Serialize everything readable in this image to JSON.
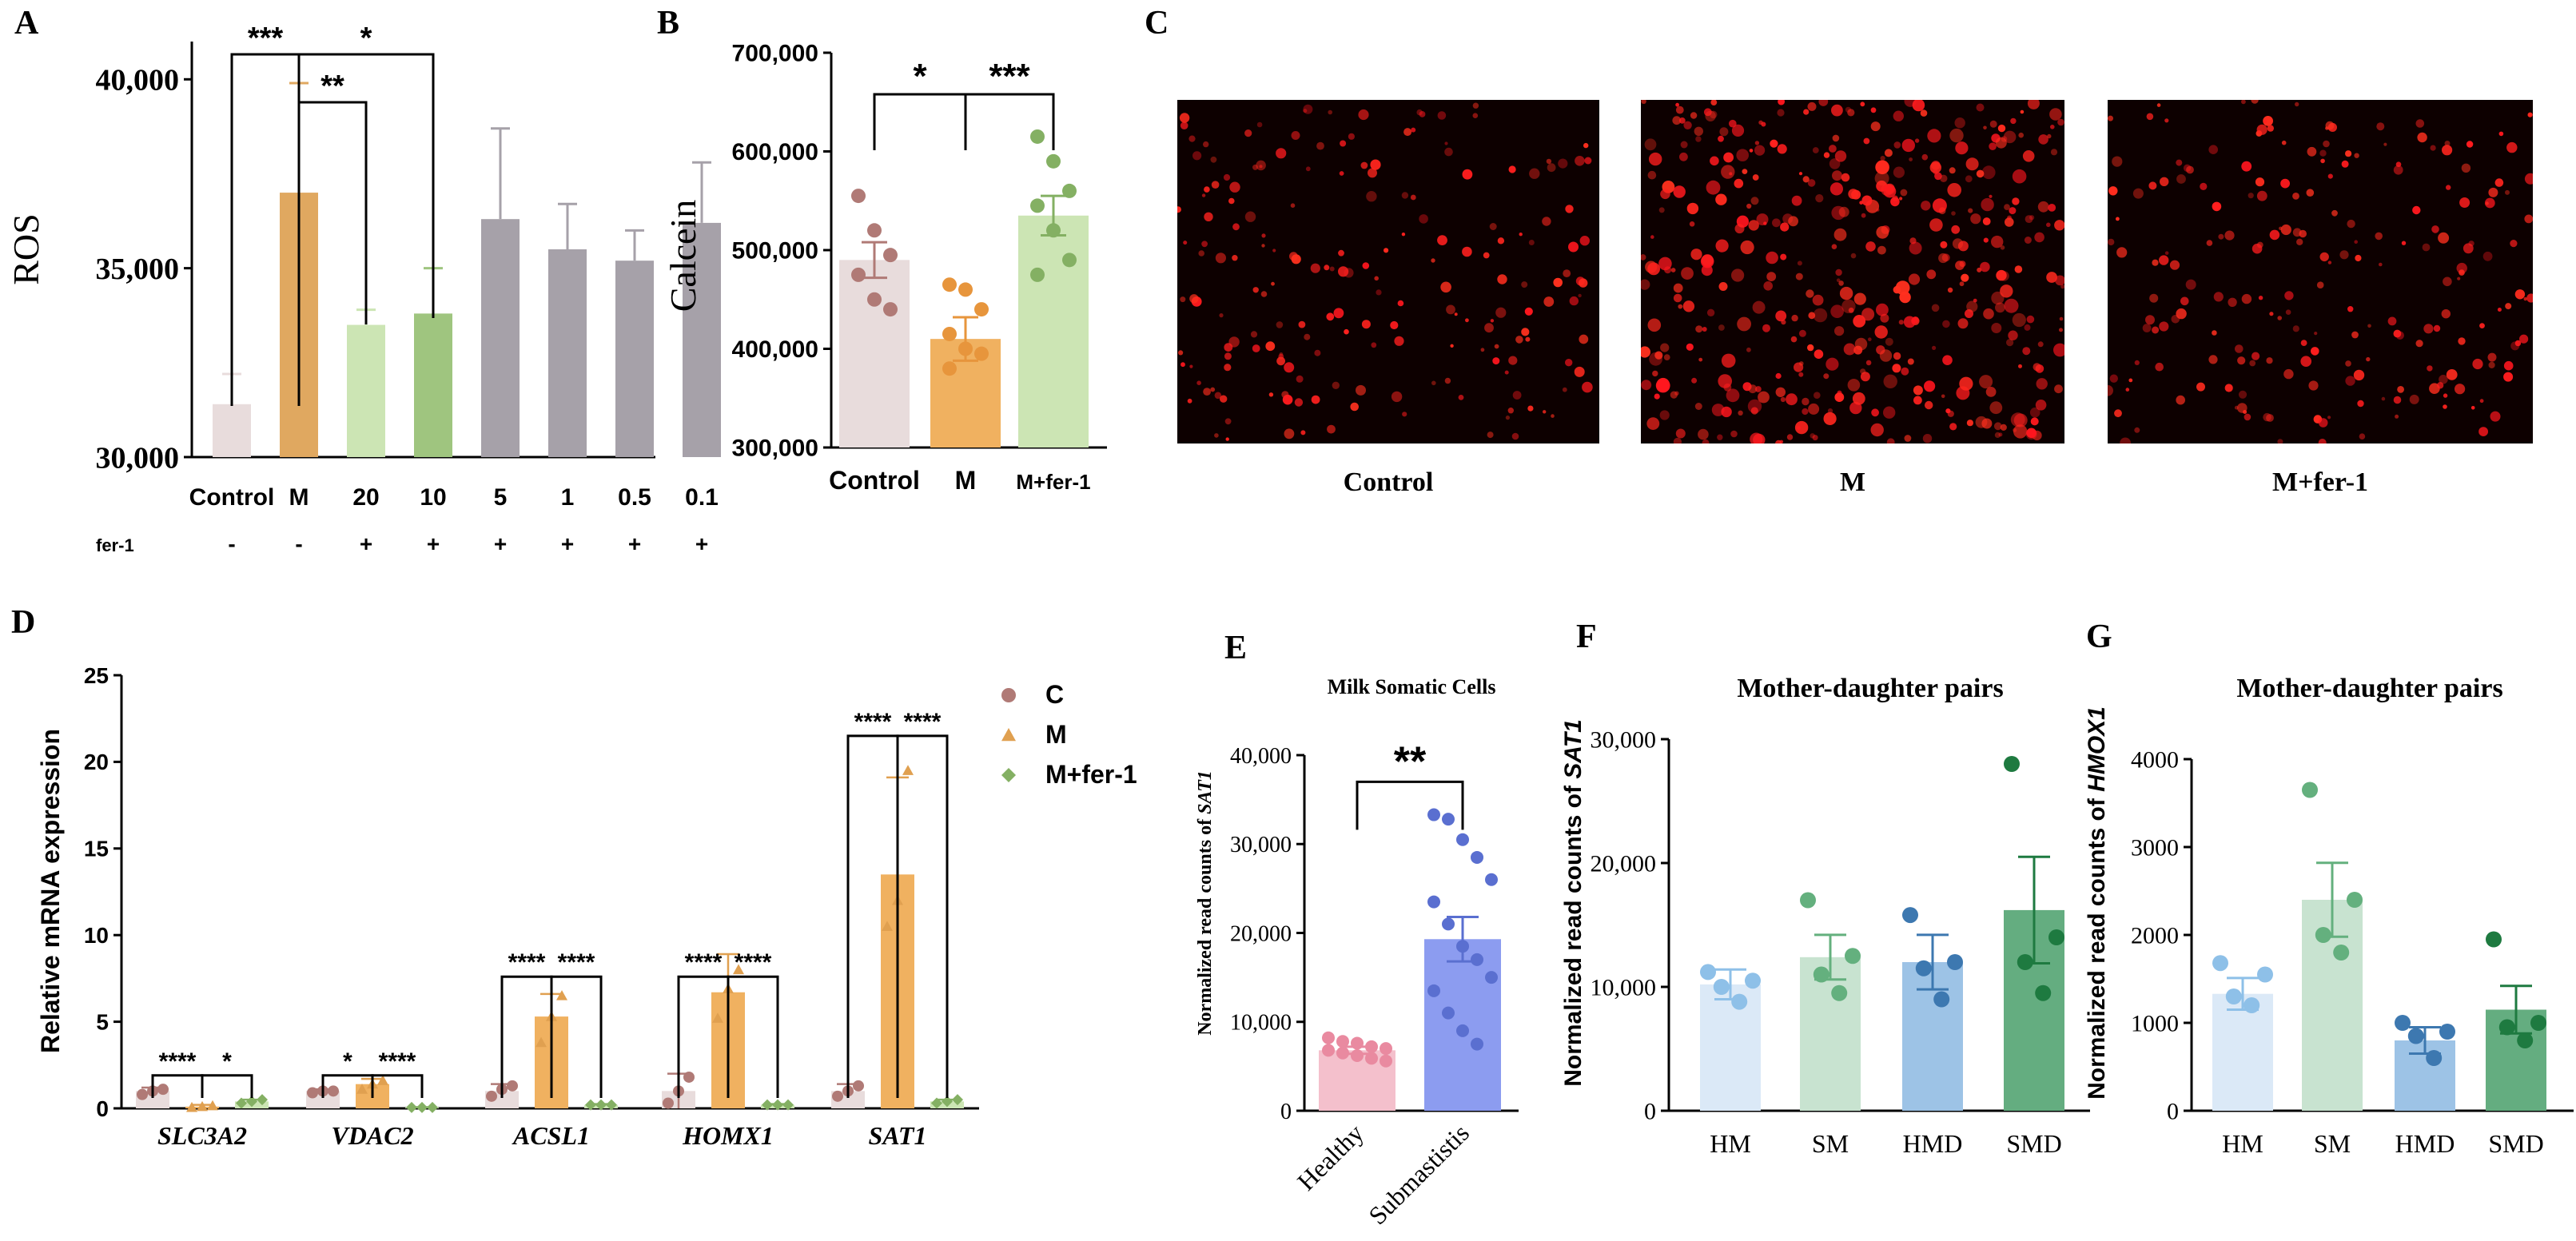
{
  "panels": {
    "A": {
      "letter": "A",
      "ylabel": "ROS",
      "ylim": [
        30000,
        41000
      ],
      "yticks": [
        "30,000",
        "35,000",
        "40,000"
      ],
      "ytick_values": [
        30000,
        35000,
        40000
      ],
      "categories": [
        "Control",
        "M",
        "20",
        "10",
        "5",
        "1",
        "0.5",
        "0.1"
      ],
      "fer_label": "fer-1",
      "fer_signs": [
        "-",
        "-",
        "+",
        "+",
        "+",
        "+",
        "+",
        "+"
      ],
      "values": [
        31400,
        37000,
        33500,
        33800,
        36300,
        35500,
        35200,
        36200
      ],
      "errors": [
        800,
        2900,
        400,
        1200,
        2400,
        1200,
        800,
        1600
      ],
      "colors": [
        "#e8dcdc",
        "#e0a860",
        "#cce5b4",
        "#9fc57f",
        "#a6a1a9",
        "#a6a1a9",
        "#a6a1a9",
        "#a6a1a9"
      ],
      "brackets": [
        {
          "from": 0,
          "to": 1,
          "label": "***"
        },
        {
          "from": 1,
          "to": 3,
          "label": "*"
        },
        {
          "from": 1,
          "to": 2,
          "label": "**"
        }
      ]
    },
    "B": {
      "letter": "B",
      "ylabel": "Calcein",
      "ylim": [
        300000,
        700000
      ],
      "yticks": [
        "300,000",
        "400,000",
        "500,000",
        "600,000",
        "700,000"
      ],
      "ytick_values": [
        300000,
        400000,
        500000,
        600000,
        700000
      ],
      "categories": [
        "Control",
        "M",
        "M+fer-1"
      ],
      "values": [
        490000,
        410000,
        535000
      ],
      "errors": [
        18000,
        22000,
        20000
      ],
      "colors": [
        "#e8dcdc",
        "#f0b160",
        "#cce5b4"
      ],
      "dot_colors": [
        "#b07a76",
        "#e7953c",
        "#84b063"
      ],
      "points": [
        [
          555000,
          520000,
          495000,
          475000,
          450000,
          440000
        ],
        [
          465000,
          460000,
          440000,
          415000,
          400000,
          395000,
          380000
        ],
        [
          615000,
          590000,
          560000,
          545000,
          520000,
          490000,
          475000
        ]
      ],
      "brackets": [
        {
          "from": 0,
          "to": 1,
          "label": "*"
        },
        {
          "from": 1,
          "to": 2,
          "label": "***"
        }
      ]
    },
    "C": {
      "letter": "C",
      "images": [
        {
          "label": "Control",
          "density": 0.45
        },
        {
          "label": "M",
          "density": 1.0
        },
        {
          "label": "M+fer-1",
          "density": 0.5
        }
      ]
    },
    "D": {
      "letter": "D",
      "ylabel": "Relative mRNA expression",
      "ylim": [
        0,
        25
      ],
      "yticks": [
        "0",
        "5",
        "10",
        "15",
        "20",
        "25"
      ],
      "ytick_values": [
        0,
        5,
        10,
        15,
        20,
        25
      ],
      "genes": [
        "SLC3A2",
        "VDAC2",
        "ACSL1",
        "HOMX1",
        "SAT1"
      ],
      "legend": [
        {
          "label": "C",
          "color": "#b07a76",
          "shape": "circle"
        },
        {
          "label": "M",
          "color": "#e0a050",
          "shape": "triangle"
        },
        {
          "label": "M+fer-1",
          "color": "#84b063",
          "shape": "diamond"
        }
      ],
      "series": [
        {
          "name": "C",
          "values": [
            1.0,
            1.0,
            1.0,
            1.0,
            1.0
          ],
          "errors": [
            0.2,
            0.1,
            0.4,
            1.0,
            0.4
          ],
          "points": [
            [
              0.8,
              1.0,
              1.1
            ],
            [
              0.9,
              1.0,
              1.0
            ],
            [
              0.7,
              1.1,
              1.3
            ],
            [
              0.3,
              1.0,
              1.8
            ],
            [
              0.7,
              1.0,
              1.3
            ]
          ]
        },
        {
          "name": "M",
          "values": [
            0.1,
            1.4,
            5.3,
            6.7,
            13.5
          ],
          "errors": [
            0.1,
            0.3,
            1.3,
            2.2,
            5.6
          ],
          "points": [
            [
              0.05,
              0.1,
              0.15
            ],
            [
              1.1,
              1.4,
              1.6
            ],
            [
              3.8,
              5.3,
              6.5
            ],
            [
              5.2,
              6.9,
              8.0
            ],
            [
              10.5,
              12.0,
              19.5
            ]
          ]
        },
        {
          "name": "M+fer-1",
          "values": [
            0.4,
            0.05,
            0.2,
            0.2,
            0.4
          ],
          "errors": [
            0.1,
            0.02,
            0.05,
            0.05,
            0.1
          ],
          "points": [
            [
              0.3,
              0.4,
              0.5
            ],
            [
              0.05,
              0.05,
              0.05
            ],
            [
              0.2,
              0.2,
              0.2
            ],
            [
              0.2,
              0.2,
              0.2
            ],
            [
              0.3,
              0.4,
              0.5
            ]
          ]
        }
      ],
      "brackets": [
        {
          "gene": 0,
          "labels": [
            "****",
            "*"
          ],
          "heights": [
            1.9,
            1.9
          ]
        },
        {
          "gene": 1,
          "labels": [
            "*",
            "****"
          ],
          "heights": [
            1.9,
            1.9
          ]
        },
        {
          "gene": 2,
          "labels": [
            "****",
            "****"
          ],
          "heights": [
            7.6,
            7.6
          ]
        },
        {
          "gene": 3,
          "labels": [
            "****",
            "****"
          ],
          "heights": [
            7.6,
            7.6
          ]
        },
        {
          "gene": 4,
          "labels": [
            "****",
            "****"
          ],
          "heights": [
            21.5,
            21.5
          ]
        }
      ]
    },
    "E": {
      "letter": "E",
      "title": "Milk Somatic Cells",
      "ylabel_pre": "Normalized read counts of ",
      "ylabel_gene": "SAT1",
      "ylim": [
        0,
        40000
      ],
      "yticks": [
        "0",
        "10,000",
        "20,000",
        "30,000",
        "40,000"
      ],
      "ytick_values": [
        0,
        10000,
        20000,
        30000,
        40000
      ],
      "categories": [
        "Healthy",
        "Submastistis"
      ],
      "values": [
        6800,
        19300
      ],
      "errors": [
        400,
        2500
      ],
      "colors": [
        "#f4c0cc",
        "#8c9cf0"
      ],
      "dot_colors": [
        "#e98aa0",
        "#5a6fd0"
      ],
      "points": [
        [
          8200,
          7800,
          7600,
          7200,
          7000,
          6800,
          6500,
          6200,
          5900,
          5600
        ],
        [
          33300,
          32800,
          30500,
          28500,
          26000,
          23500,
          21000,
          18500,
          17000,
          15000,
          13500,
          11000,
          9000,
          7500
        ]
      ],
      "bracket_label": "**"
    },
    "F": {
      "letter": "F",
      "title": "Mother-daughter pairs",
      "ylabel_pre": "Normalized read counts of ",
      "ylabel_gene": "SAT1",
      "ylim": [
        0,
        30000
      ],
      "yticks": [
        "0",
        "10,000",
        "20,000",
        "30,000"
      ],
      "ytick_values": [
        0,
        10000,
        20000,
        30000
      ],
      "categories": [
        "HM",
        "SM",
        "HMD",
        "SMD"
      ],
      "values": [
        10200,
        12400,
        12000,
        16200
      ],
      "errors": [
        1200,
        1800,
        2200,
        4300
      ],
      "colors": [
        "#dbe9f7",
        "#c8e3d0",
        "#9dc3e6",
        "#64ad80"
      ],
      "dot_colors": [
        "#8ec0e8",
        "#64b07e",
        "#3d78b0",
        "#1e7a40"
      ],
      "points": [
        [
          11200,
          10500,
          10000,
          8800
        ],
        [
          17000,
          12500,
          11000,
          9500
        ],
        [
          15800,
          12000,
          11500,
          9000
        ],
        [
          28000,
          14000,
          12000,
          9500
        ]
      ]
    },
    "G": {
      "letter": "G",
      "title": "Mother-daughter pairs",
      "ylabel_pre": "Normalized read counts of ",
      "ylabel_gene": "HMOX1",
      "ylim": [
        0,
        4000
      ],
      "yticks": [
        "0",
        "1000",
        "2000",
        "3000",
        "4000"
      ],
      "ytick_values": [
        0,
        1000,
        2000,
        3000,
        4000
      ],
      "categories": [
        "HM",
        "SM",
        "HMD",
        "SMD"
      ],
      "values": [
        1330,
        2400,
        800,
        1150
      ],
      "errors": [
        180,
        420,
        150,
        270
      ],
      "colors": [
        "#dbe9f7",
        "#c8e3d0",
        "#9dc3e6",
        "#64ad80"
      ],
      "dot_colors": [
        "#8ec0e8",
        "#64b07e",
        "#3d78b0",
        "#1e7a40"
      ],
      "points": [
        [
          1680,
          1550,
          1300,
          1200
        ],
        [
          3650,
          2400,
          2000,
          1800
        ],
        [
          1000,
          900,
          850,
          600
        ],
        [
          1950,
          1000,
          950,
          800
        ]
      ]
    }
  },
  "chart_data": [
    {
      "type": "bar",
      "panel": "A",
      "ylabel": "ROS",
      "categories": [
        "Control",
        "M",
        "20",
        "10",
        "5",
        "1",
        "0.5",
        "0.1"
      ],
      "values": [
        31400,
        37000,
        33500,
        33800,
        36300,
        35500,
        35200,
        36200
      ],
      "ylim": [
        30000,
        41000
      ]
    },
    {
      "type": "bar",
      "panel": "B",
      "ylabel": "Calcein",
      "categories": [
        "Control",
        "M",
        "M+fer-1"
      ],
      "values": [
        490000,
        410000,
        535000
      ],
      "ylim": [
        300000,
        700000
      ]
    },
    {
      "type": "bar",
      "panel": "D",
      "ylabel": "Relative mRNA expression",
      "categories": [
        "SLC3A2",
        "VDAC2",
        "ACSL1",
        "HOMX1",
        "SAT1"
      ],
      "series": [
        {
          "name": "C",
          "values": [
            1.0,
            1.0,
            1.0,
            1.0,
            1.0
          ]
        },
        {
          "name": "M",
          "values": [
            0.1,
            1.4,
            5.3,
            6.7,
            13.5
          ]
        },
        {
          "name": "M+fer-1",
          "values": [
            0.4,
            0.05,
            0.2,
            0.2,
            0.4
          ]
        }
      ],
      "ylim": [
        0,
        25
      ]
    },
    {
      "type": "bar",
      "panel": "E",
      "title": "Milk Somatic Cells",
      "ylabel": "Normalized read counts of SAT1",
      "categories": [
        "Healthy",
        "Submastistis"
      ],
      "values": [
        6800,
        19300
      ],
      "ylim": [
        0,
        40000
      ]
    },
    {
      "type": "bar",
      "panel": "F",
      "title": "Mother-daughter pairs",
      "ylabel": "Normalized read counts of SAT1",
      "categories": [
        "HM",
        "SM",
        "HMD",
        "SMD"
      ],
      "values": [
        10200,
        12400,
        12000,
        16200
      ],
      "ylim": [
        0,
        30000
      ]
    },
    {
      "type": "bar",
      "panel": "G",
      "title": "Mother-daughter pairs",
      "ylabel": "Normalized read counts of HMOX1",
      "categories": [
        "HM",
        "SM",
        "HMD",
        "SMD"
      ],
      "values": [
        1330,
        2400,
        800,
        1150
      ],
      "ylim": [
        0,
        4000
      ]
    }
  ]
}
